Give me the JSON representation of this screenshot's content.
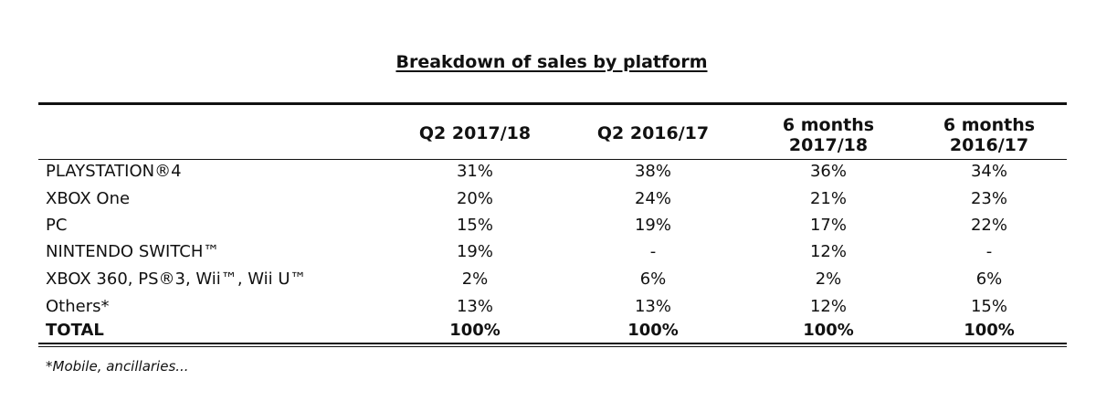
{
  "chart_data": {
    "type": "table",
    "title": "Breakdown of sales by platform",
    "columns": [
      {
        "line1": "Q2 2017/18",
        "line2": ""
      },
      {
        "line1": "Q2 2016/17",
        "line2": ""
      },
      {
        "line1": "6 months",
        "line2": "2017/18"
      },
      {
        "line1": "6 months",
        "line2": "2016/17"
      }
    ],
    "rows": [
      {
        "label": "PLAYSTATION®4",
        "values": [
          "31%",
          "38%",
          "36%",
          "34%"
        ]
      },
      {
        "label": "XBOX One",
        "values": [
          "20%",
          "24%",
          "21%",
          "23%"
        ]
      },
      {
        "label": "PC",
        "values": [
          "15%",
          "19%",
          "17%",
          "22%"
        ]
      },
      {
        "label": "NINTENDO SWITCH™",
        "values": [
          "19%",
          "-",
          "12%",
          "-"
        ]
      },
      {
        "label": "XBOX 360, PS®3, Wii™, Wii U™",
        "values": [
          "2%",
          "6%",
          "2%",
          "6%"
        ]
      },
      {
        "label": "Others*",
        "values": [
          "13%",
          "13%",
          "12%",
          "15%"
        ]
      }
    ],
    "total": {
      "label": "TOTAL",
      "values": [
        "100%",
        "100%",
        "100%",
        "100%"
      ]
    },
    "footnote": "*Mobile, ancillaries..."
  }
}
